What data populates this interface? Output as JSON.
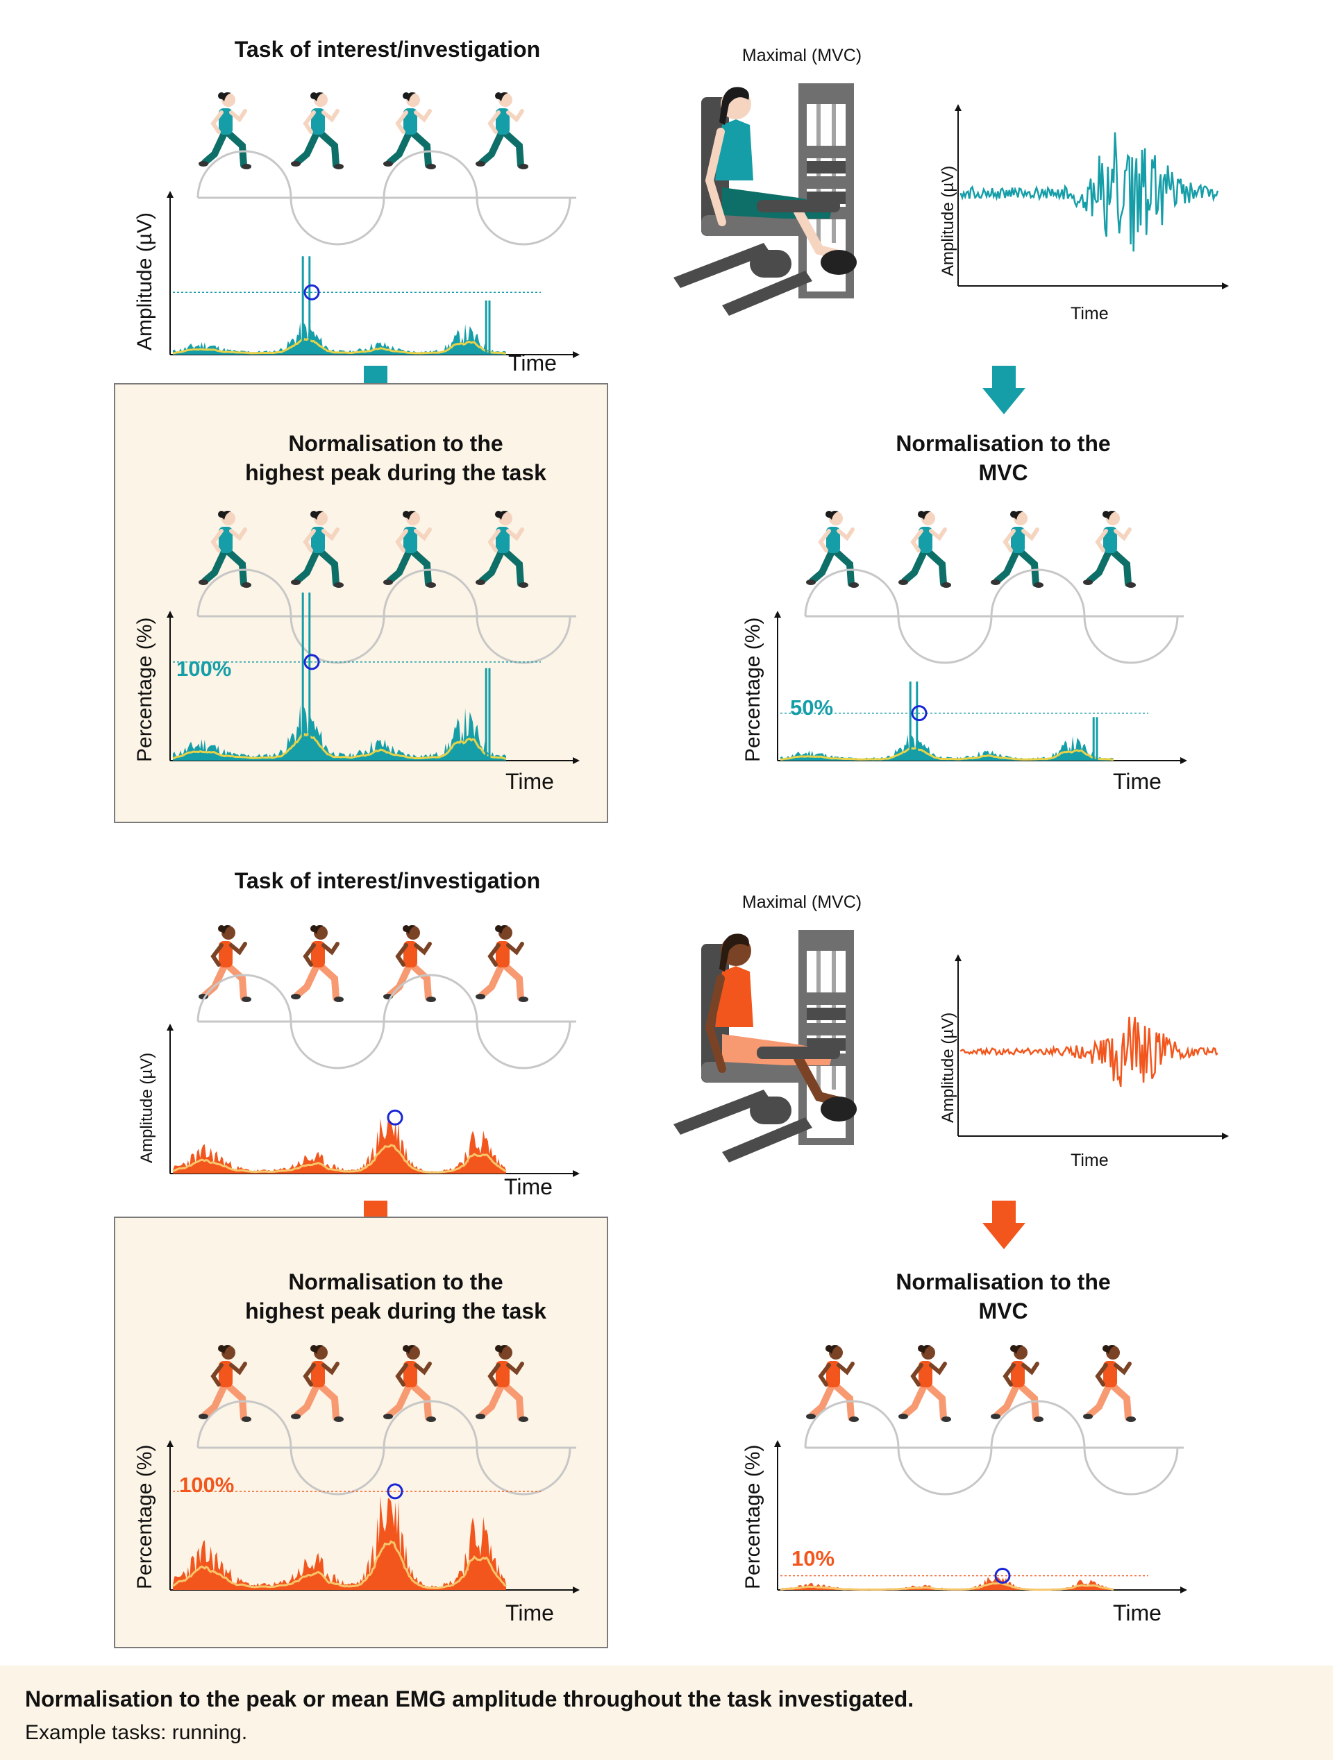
{
  "colors": {
    "teal": "#159ea8",
    "teal_dark": "#0e6f68",
    "orange": "#f3561c",
    "orange_light": "#f79a72",
    "mean_line_teal": "#e8d24a",
    "mean_line_orange": "#f7c66b",
    "peak_circle": "#1826d6",
    "panel_bg": "#fcf4e6",
    "machine_gray": "#6f6f6f"
  },
  "sections": [
    {
      "id": "teal",
      "task": {
        "title": "Task of interest/investigation",
        "ylabel": "Amplitude (µV)",
        "xlabel": "Time",
        "runner_count": 4
      },
      "mvc": {
        "title": "Maximal (MVC)",
        "ylabel": "Amplitude (µV)",
        "xlabel": "Time"
      },
      "norm_task": {
        "title_line1": "Normalisation to the",
        "title_line2": "highest peak during the task",
        "ylabel": "Percentage (%)",
        "xlabel": "Time",
        "reference_label": "100%",
        "reference_value": 100
      },
      "norm_mvc": {
        "title_line1": "Normalisation to the",
        "title_line2": "MVC",
        "ylabel": "Percentage (%)",
        "xlabel": "Time",
        "reference_label": "50%",
        "reference_value": 50
      }
    },
    {
      "id": "orange",
      "task": {
        "title": "Task of interest/investigation",
        "ylabel": "Amplitude (µV)",
        "xlabel": "Time",
        "runner_count": 4
      },
      "mvc": {
        "title": "Maximal (MVC)",
        "ylabel": "Amplitude (µV)",
        "xlabel": "Time"
      },
      "norm_task": {
        "title_line1": "Normalisation to the",
        "title_line2": "highest peak during the task",
        "ylabel": "Percentage (%)",
        "xlabel": "Time",
        "reference_label": "100%",
        "reference_value": 100
      },
      "norm_mvc": {
        "title_line1": "Normalisation to the",
        "title_line2": "MVC",
        "ylabel": "Percentage (%)",
        "xlabel": "Time",
        "reference_label": "10%",
        "reference_value": 10
      }
    }
  ],
  "footer": {
    "line1": "Normalisation to the peak or mean EMG amplitude throughout the task investigated.",
    "line2": "Example tasks: running."
  }
}
